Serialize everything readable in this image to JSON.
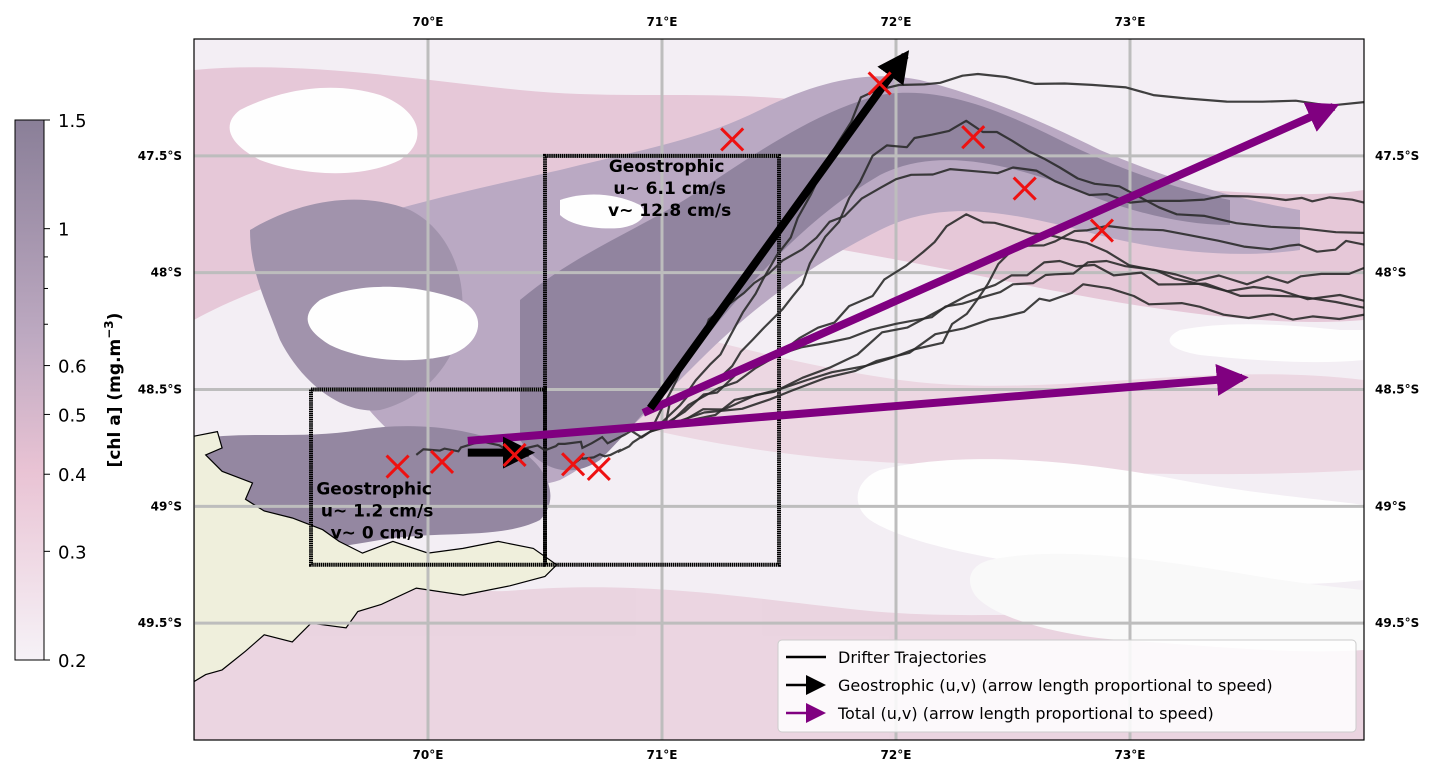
{
  "chart_data": {
    "type": "map",
    "projection": "lon-lat",
    "xlim": [
      69.0,
      74.0
    ],
    "ylim": [
      -50.0,
      -47.0
    ],
    "grid": true,
    "lon_ticks": [
      {
        "value": 70,
        "label": "70°E"
      },
      {
        "value": 71,
        "label": "71°E"
      },
      {
        "value": 72,
        "label": "72°E"
      },
      {
        "value": 73,
        "label": "73°E"
      }
    ],
    "lat_ticks": [
      {
        "value": -47.5,
        "label": "47.5°S"
      },
      {
        "value": -48.0,
        "label": "48°S"
      },
      {
        "value": -48.5,
        "label": "48.5°S"
      },
      {
        "value": -49.0,
        "label": "49°S"
      },
      {
        "value": -49.5,
        "label": "49.5°S"
      }
    ],
    "colorbar": {
      "label": "[chl a] (mg.m",
      "label_sup": "−3",
      "label_end": ")",
      "scale": "log",
      "range": [
        0.2,
        1.5
      ],
      "ticks": [
        {
          "value": 1.5,
          "label": "1.5"
        },
        {
          "value": 1.0,
          "label": "1"
        },
        {
          "value": 0.6,
          "label": "0.6"
        },
        {
          "value": 0.5,
          "label": "0.5"
        },
        {
          "value": 0.4,
          "label": "0.4"
        },
        {
          "value": 0.3,
          "label": "0.3"
        },
        {
          "value": 0.2,
          "label": "0.2"
        }
      ],
      "minor_ticks": [
        0.9,
        0.8,
        0.7
      ],
      "colors": [
        "#f6f2f7",
        "#e9c3d4",
        "#bda9c1",
        "#8a7f98"
      ]
    },
    "boxes": [
      {
        "lon": [
          69.5,
          70.5
        ],
        "lat": [
          -49.25,
          -48.5
        ],
        "label_lines": [
          "Geostrophic",
          " u~ 1.2 cm/s",
          " v~ 0 cm/s"
        ],
        "label_pos": [
          69.77,
          -48.95
        ]
      },
      {
        "lon": [
          70.5,
          71.5
        ],
        "lat": [
          -49.25,
          -47.5
        ],
        "label_lines": [
          "Geostrophic",
          " u~ 6.1 cm/s",
          " v~ 12.8 cm/s"
        ],
        "label_pos": [
          71.02,
          -47.57
        ]
      }
    ],
    "geostrophic_arrows": [
      {
        "start": [
          70.17,
          -48.77
        ],
        "end": [
          70.43,
          -48.77
        ]
      },
      {
        "start": [
          70.95,
          -48.58
        ],
        "end": [
          72.04,
          -47.07
        ]
      }
    ],
    "total_arrows": [
      {
        "start": [
          70.17,
          -48.72
        ],
        "end": [
          73.48,
          -48.45
        ]
      },
      {
        "start": [
          70.92,
          -48.6
        ],
        "end": [
          73.87,
          -47.29
        ]
      }
    ],
    "drifter_release": [
      70.95,
      -48.68
    ],
    "drifter_trajectories": [
      [
        [
          70.95,
          -48.68
        ],
        [
          71.25,
          -48.35
        ],
        [
          71.55,
          -47.85
        ],
        [
          71.85,
          -47.25
        ],
        [
          72.35,
          -47.15
        ],
        [
          73.1,
          -47.24
        ],
        [
          74.0,
          -47.27
        ]
      ],
      [
        [
          70.95,
          -48.68
        ],
        [
          71.3,
          -48.4
        ],
        [
          71.6,
          -48.05
        ],
        [
          71.9,
          -47.5
        ],
        [
          72.3,
          -47.35
        ],
        [
          72.7,
          -47.55
        ],
        [
          73.2,
          -47.75
        ],
        [
          74.0,
          -47.83
        ]
      ],
      [
        [
          70.95,
          -48.68
        ],
        [
          71.4,
          -48.4
        ],
        [
          71.9,
          -48.1
        ],
        [
          72.3,
          -47.75
        ],
        [
          72.7,
          -47.85
        ],
        [
          73.3,
          -48.05
        ],
        [
          74.0,
          -48.12
        ]
      ],
      [
        [
          70.95,
          -48.68
        ],
        [
          71.5,
          -48.35
        ],
        [
          72.1,
          -48.2
        ],
        [
          72.5,
          -48.05
        ],
        [
          72.9,
          -47.95
        ],
        [
          73.5,
          -48.05
        ],
        [
          74.0,
          -47.98
        ]
      ],
      [
        [
          70.95,
          -48.68
        ],
        [
          71.6,
          -48.45
        ],
        [
          72.3,
          -48.1
        ],
        [
          72.7,
          -47.95
        ],
        [
          73.2,
          -48.05
        ],
        [
          74.0,
          -48.15
        ]
      ],
      [
        [
          70.95,
          -48.68
        ],
        [
          71.5,
          -48.5
        ],
        [
          72.2,
          -48.3
        ],
        [
          72.5,
          -47.9
        ],
        [
          72.9,
          -47.8
        ],
        [
          73.6,
          -47.9
        ],
        [
          74.0,
          -47.88
        ]
      ],
      [
        [
          70.95,
          -48.68
        ],
        [
          71.7,
          -48.45
        ],
        [
          72.4,
          -48.2
        ],
        [
          72.8,
          -48.05
        ],
        [
          73.4,
          -48.18
        ],
        [
          74.0,
          -48.18
        ]
      ],
      [
        [
          70.95,
          -48.68
        ],
        [
          71.2,
          -48.2
        ],
        [
          71.6,
          -47.9
        ],
        [
          72.0,
          -47.6
        ],
        [
          72.5,
          -47.55
        ],
        [
          73.0,
          -47.7
        ],
        [
          73.6,
          -47.68
        ],
        [
          74.0,
          -47.7
        ]
      ]
    ],
    "drifter_start_tracks": [
      [
        [
          69.95,
          -48.78
        ],
        [
          70.2,
          -48.73
        ],
        [
          70.5,
          -48.76
        ],
        [
          70.7,
          -48.73
        ],
        [
          70.95,
          -48.68
        ]
      ],
      [
        [
          70.62,
          -48.82
        ],
        [
          70.78,
          -48.78
        ],
        [
          70.95,
          -48.68
        ]
      ]
    ],
    "drifter_endpoints": [
      [
        69.87,
        -48.83
      ],
      [
        70.06,
        -48.81
      ],
      [
        70.37,
        -48.78
      ],
      [
        70.62,
        -48.82
      ],
      [
        70.73,
        -48.84
      ],
      [
        71.3,
        -47.43
      ],
      [
        71.93,
        -47.19
      ],
      [
        72.33,
        -47.42
      ],
      [
        72.55,
        -47.64
      ],
      [
        72.88,
        -47.82
      ]
    ],
    "land_polygon": [
      [
        69.0,
        -48.7
      ],
      [
        69.1,
        -48.68
      ],
      [
        69.12,
        -48.75
      ],
      [
        69.05,
        -48.78
      ],
      [
        69.12,
        -48.85
      ],
      [
        69.25,
        -48.9
      ],
      [
        69.22,
        -48.97
      ],
      [
        69.3,
        -49.02
      ],
      [
        69.42,
        -49.05
      ],
      [
        69.55,
        -49.1
      ],
      [
        69.62,
        -49.15
      ],
      [
        69.72,
        -49.2
      ],
      [
        69.85,
        -49.15
      ],
      [
        70.0,
        -49.2
      ],
      [
        70.15,
        -49.18
      ],
      [
        70.3,
        -49.15
      ],
      [
        70.45,
        -49.18
      ],
      [
        70.55,
        -49.25
      ],
      [
        70.5,
        -49.3
      ],
      [
        70.35,
        -49.34
      ],
      [
        70.15,
        -49.38
      ],
      [
        69.95,
        -49.35
      ],
      [
        69.8,
        -49.42
      ],
      [
        69.7,
        -49.45
      ],
      [
        69.65,
        -49.52
      ],
      [
        69.5,
        -49.5
      ],
      [
        69.42,
        -49.58
      ],
      [
        69.3,
        -49.55
      ],
      [
        69.22,
        -49.62
      ],
      [
        69.12,
        -49.7
      ],
      [
        69.05,
        -49.72
      ],
      [
        69.0,
        -49.75
      ]
    ],
    "legend": {
      "position": "lower-right",
      "entries": [
        {
          "label": "Drifter Trajectories",
          "marker": "line",
          "color": "#000000"
        },
        {
          "label": "Geostrophic (u,v) (arrow length proportional to speed)",
          "marker": "arrow",
          "color": "#000000"
        },
        {
          "label": "Total (u,v) (arrow length proportional to speed)",
          "marker": "arrow",
          "color": "#800080"
        }
      ]
    },
    "colors": {
      "drifter_line": "#2b2b2b",
      "geostrophic_arrow": "#000000",
      "total_arrow": "#800080",
      "endpoint_marker": "#ee1111",
      "land": "#efefdc",
      "grid": "#bdbdbd",
      "chl_low": "#f6f2f7",
      "chl_mid": "#e9c3d4",
      "chl_high": "#bda9c1",
      "chl_max": "#8a7f98"
    }
  }
}
